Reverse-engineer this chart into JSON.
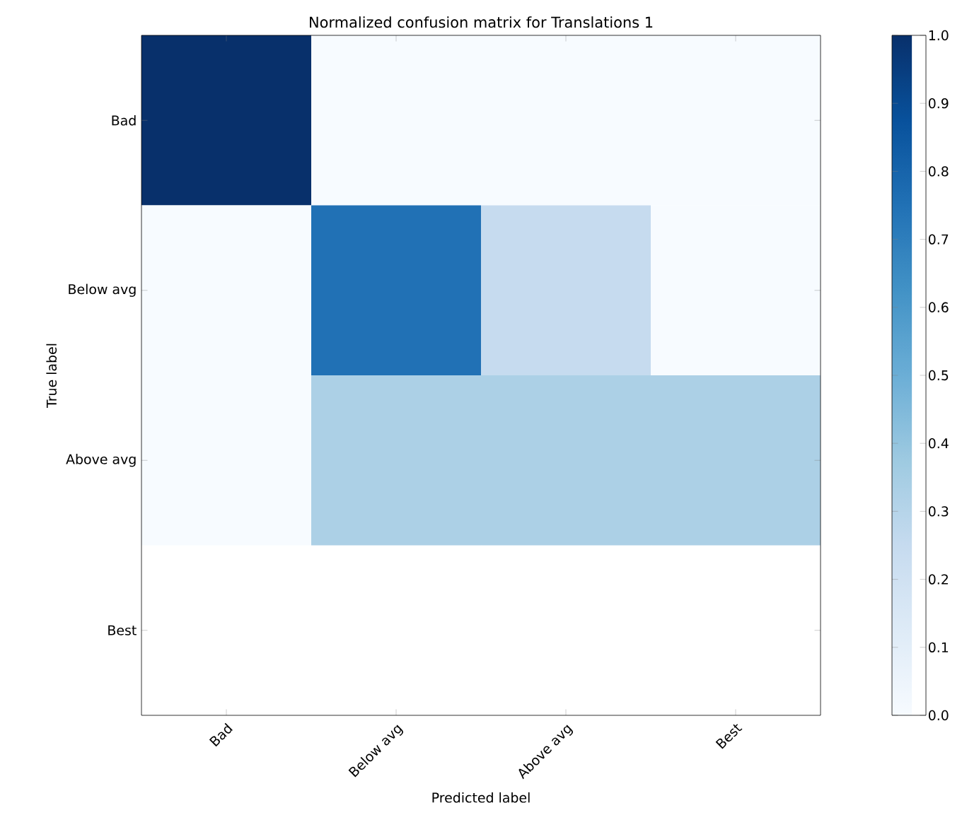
{
  "chart_data": {
    "type": "heatmap",
    "title": "Normalized confusion matrix for Translations 1",
    "xlabel": "Predicted label",
    "ylabel": "True label",
    "categories": [
      "Bad",
      "Below avg",
      "Above avg",
      "Best"
    ],
    "y_categories": [
      "Bad",
      "Below avg",
      "Above avg",
      "Best"
    ],
    "cells": [
      [
        1.0,
        0.0,
        0.0,
        0.0
      ],
      [
        0.0,
        0.75,
        0.25,
        0.0
      ],
      [
        0.0,
        0.33,
        0.33,
        0.33
      ],
      [
        null,
        null,
        null,
        null
      ]
    ],
    "clim": [
      0.0,
      1.0
    ],
    "cticks": [
      {
        "value": 0.0,
        "label": "0.0"
      },
      {
        "value": 0.1,
        "label": "0.1"
      },
      {
        "value": 0.2,
        "label": "0.2"
      },
      {
        "value": 0.3,
        "label": "0.3"
      },
      {
        "value": 0.4,
        "label": "0.4"
      },
      {
        "value": 0.5,
        "label": "0.5"
      },
      {
        "value": 0.6,
        "label": "0.6"
      },
      {
        "value": 0.7,
        "label": "0.7"
      },
      {
        "value": 0.8,
        "label": "0.8"
      },
      {
        "value": 0.9,
        "label": "0.9"
      },
      {
        "value": 1.0,
        "label": "1.0"
      }
    ]
  }
}
